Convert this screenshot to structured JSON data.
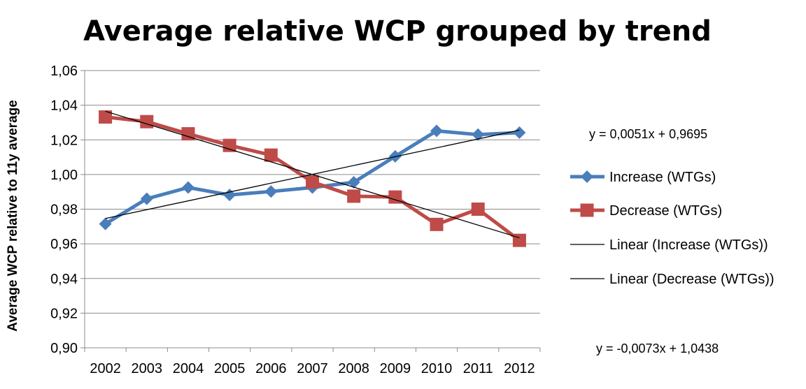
{
  "chart_data": {
    "type": "line",
    "title": "Average relative WCP grouped by trend",
    "ylabel": "Average WCP relative to 11y average",
    "xlabel": "",
    "x": [
      "2002",
      "2003",
      "2004",
      "2005",
      "2006",
      "2007",
      "2008",
      "2009",
      "2010",
      "2011",
      "2012"
    ],
    "ylim": [
      0.9,
      1.06
    ],
    "yticks": [
      "0,90",
      "0,92",
      "0,94",
      "0,96",
      "0,98",
      "1,00",
      "1,02",
      "1,04",
      "1,06"
    ],
    "yticks_values": [
      0.9,
      0.92,
      0.94,
      0.96,
      0.98,
      1.0,
      1.02,
      1.04,
      1.06
    ],
    "grid": "horizontal",
    "legend_position": "right",
    "series": [
      {
        "name": "Increase (WTGs)",
        "color": "#4a7ebb",
        "marker": "diamond",
        "values": [
          0.9715,
          0.986,
          0.9925,
          0.9882,
          0.9902,
          0.9925,
          0.9955,
          1.0105,
          1.0252,
          1.023,
          1.0242
        ]
      },
      {
        "name": "Decrease (WTGs)",
        "color": "#be4b48",
        "marker": "square",
        "values": [
          1.0332,
          1.0305,
          1.0235,
          1.0168,
          1.0112,
          0.9957,
          0.9875,
          0.987,
          0.9712,
          0.98,
          0.962
        ]
      }
    ],
    "trendlines": [
      {
        "name": "Linear (Increase (WTGs))",
        "color": "#000000",
        "slope": 0.0051,
        "intercept": 0.9695,
        "equation": "y = 0,0051x + 0,9695"
      },
      {
        "name": "Linear (Decrease (WTGs))",
        "color": "#000000",
        "slope": -0.0073,
        "intercept": 1.0438,
        "equation": "y = -0,0073x + 1,0438"
      }
    ]
  }
}
